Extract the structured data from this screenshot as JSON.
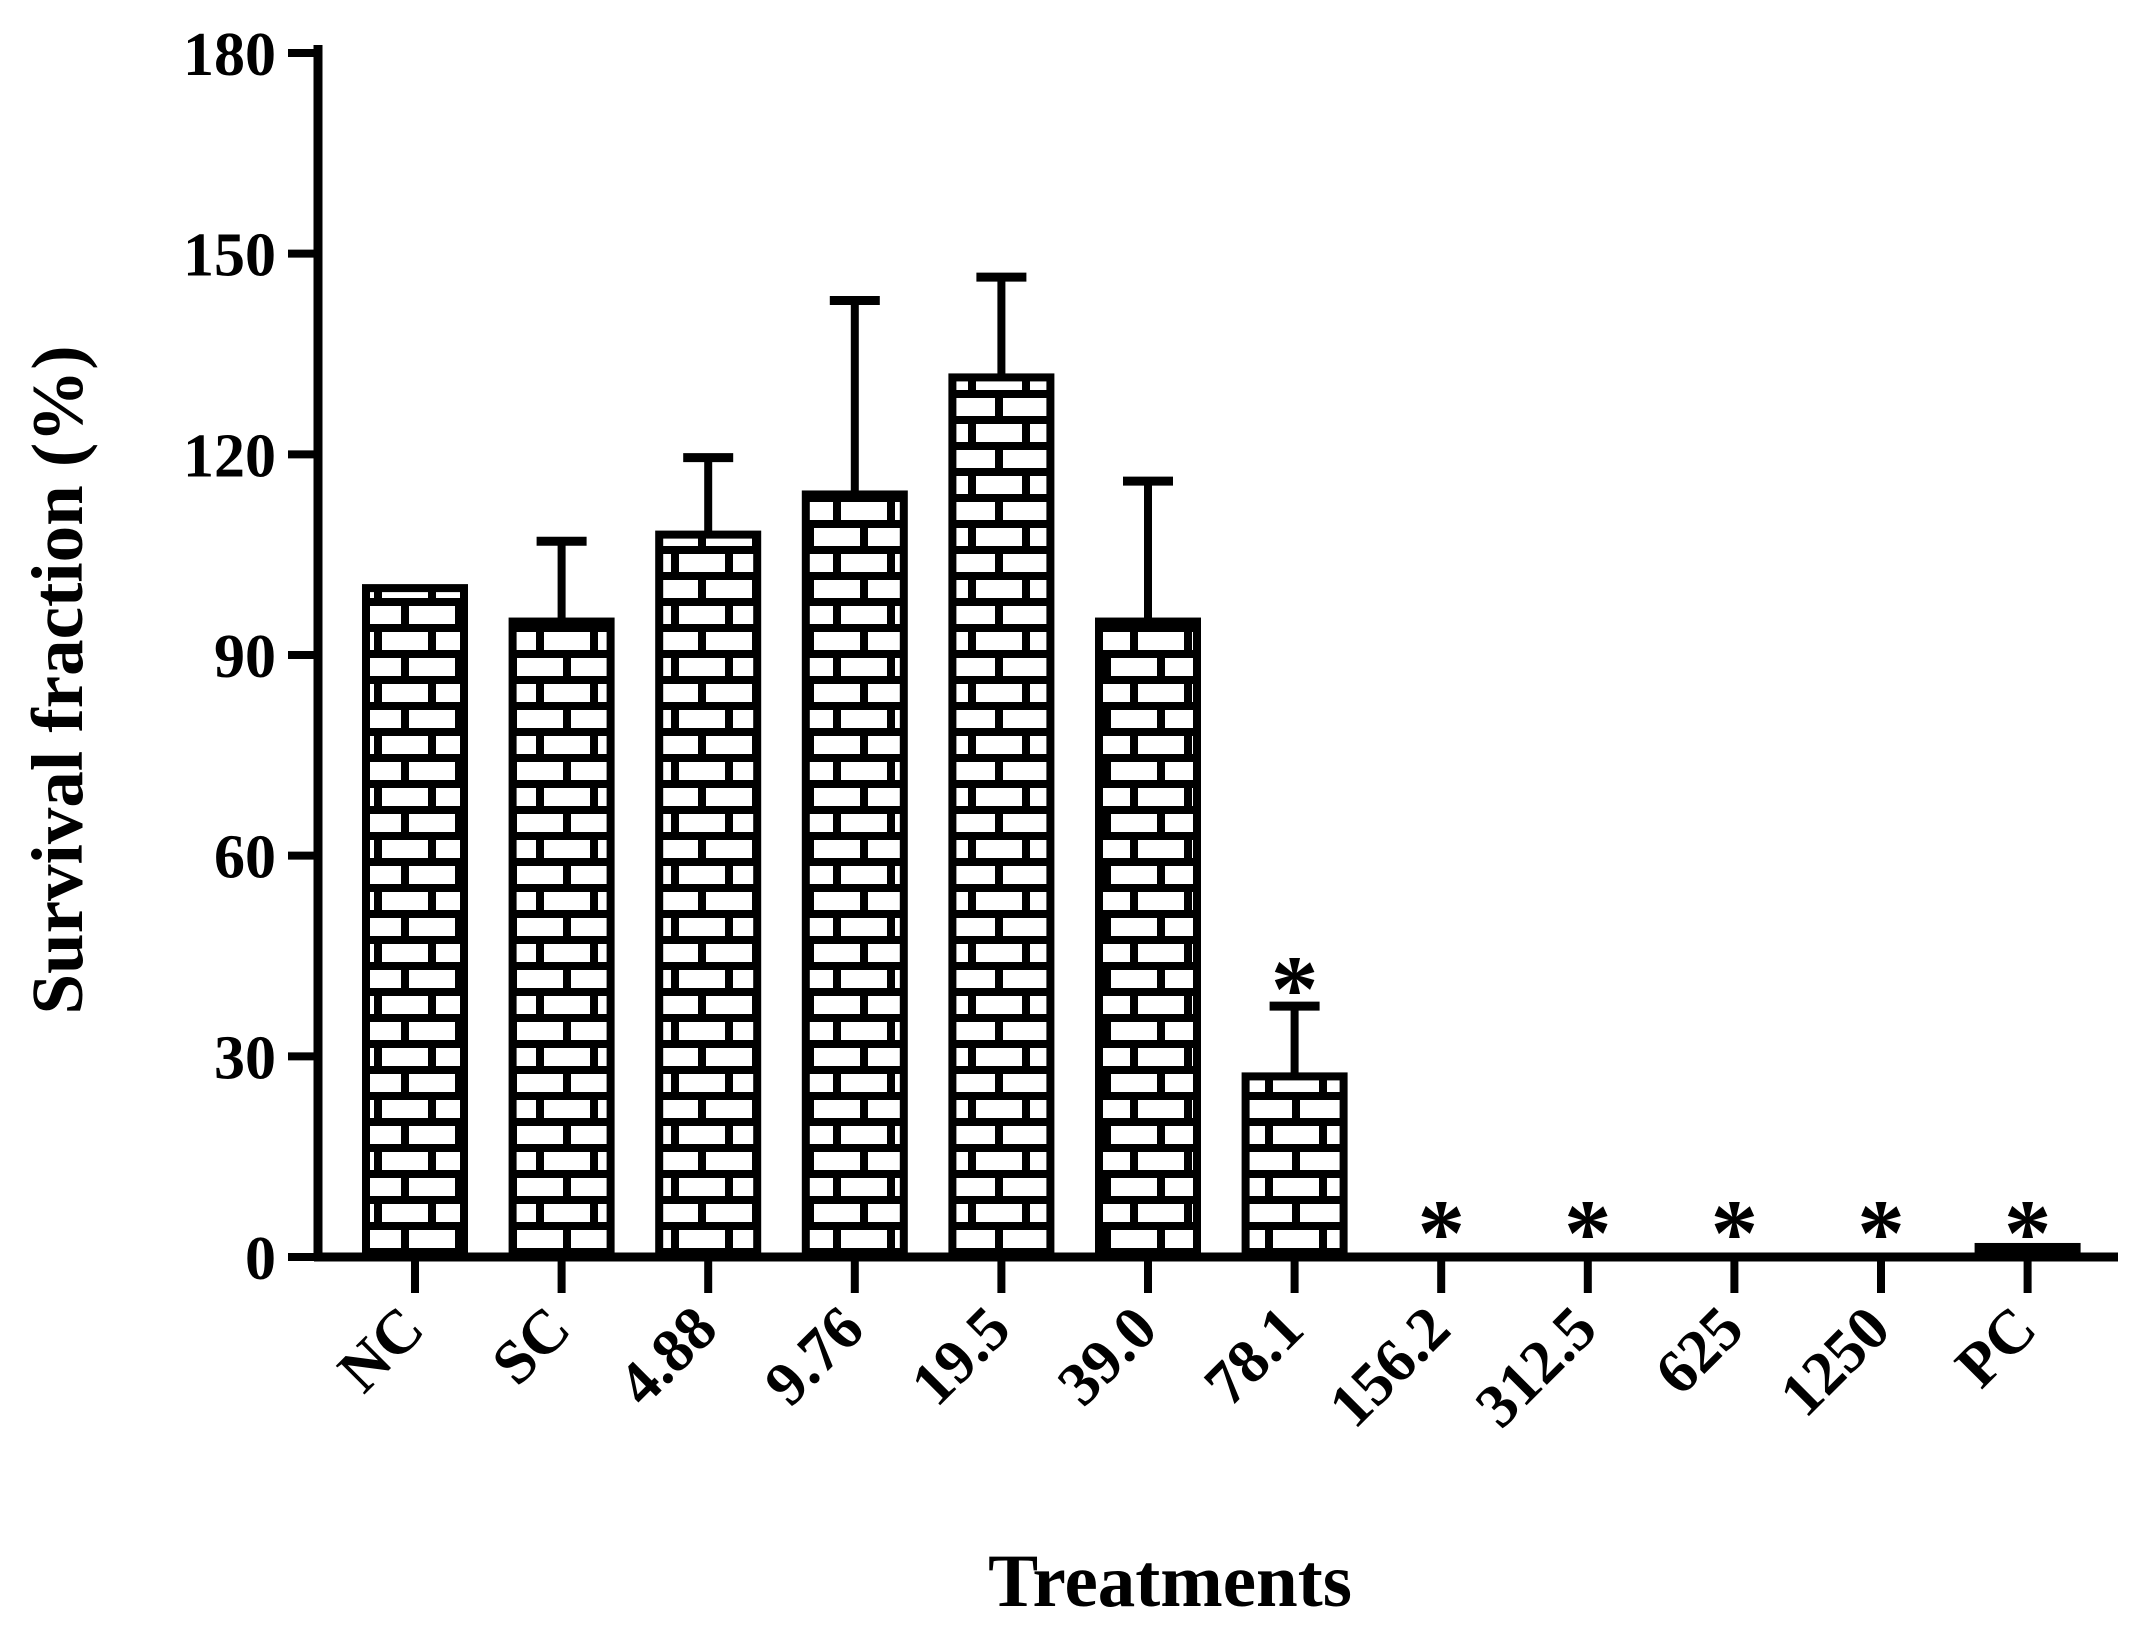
{
  "chart_data": {
    "type": "bar",
    "title": "",
    "xlabel": "Treatments",
    "ylabel": "Survival fraction (%)",
    "ylim": [
      0,
      180
    ],
    "yticks": [
      0,
      30,
      60,
      90,
      120,
      150,
      180
    ],
    "grid": "off",
    "legend": "none",
    "categories": [
      "NC",
      "SC",
      "4.88",
      "9.76",
      "19.5",
      "39.0",
      "78.1",
      "156.2",
      "312.5",
      "625",
      "1250",
      "PC"
    ],
    "values": [
      100,
      95,
      108,
      114,
      131.5,
      95,
      27,
      0,
      0,
      0,
      0,
      1.5
    ],
    "sd_upper": [
      0,
      12,
      11.5,
      29,
      15,
      21,
      10.5,
      0,
      0,
      0,
      0,
      0
    ],
    "significant": [
      false,
      false,
      false,
      false,
      false,
      false,
      true,
      true,
      true,
      true,
      true,
      true
    ],
    "significance_marker": "*",
    "bar_fill": "white-brick-hatch",
    "bar_outline_color": "#000000",
    "background_color": "#ffffff"
  }
}
